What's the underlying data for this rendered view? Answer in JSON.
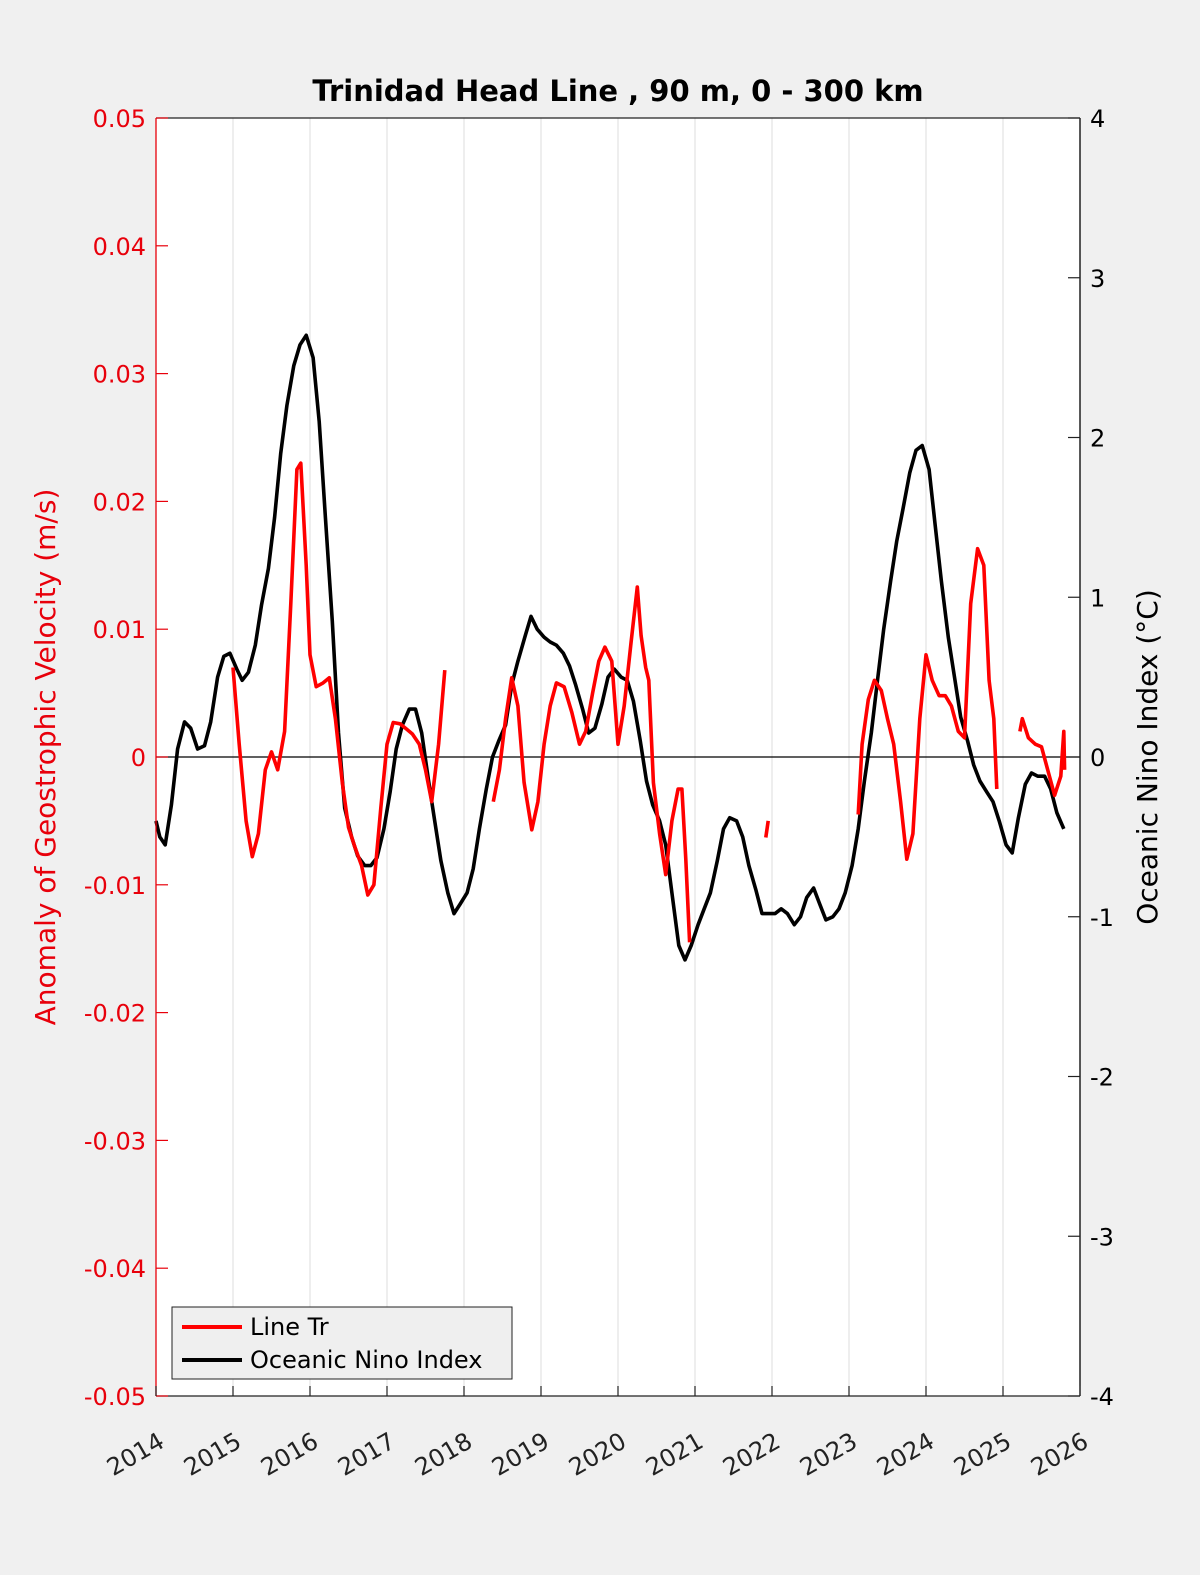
{
  "chart_data": {
    "type": "line",
    "title": "Trinidad Head Line , 90 m, 0 - 300 km",
    "xlabel": "",
    "ylabel": "Anomaly of Geostrophic Velocity (m/s)",
    "ylabel_right": "Oceanic Nino Index (°C)",
    "xlim": [
      2014,
      2026
    ],
    "ylim": [
      -0.05,
      0.05
    ],
    "ylim_right": [
      -4,
      4
    ],
    "x_ticks": [
      "2014",
      "2015",
      "2016",
      "2017",
      "2018",
      "2019",
      "2020",
      "2021",
      "2022",
      "2023",
      "2024",
      "2025",
      "2026"
    ],
    "y_ticks_left": [
      "0.05",
      "0.04",
      "0.03",
      "0.02",
      "0.01",
      "0",
      "-0.01",
      "-0.02",
      "-0.03",
      "-0.04",
      "-0.05"
    ],
    "y_ticks_right": [
      "4",
      "3",
      "2",
      "1",
      "0",
      "-1",
      "-2",
      "-3",
      "-4"
    ],
    "grid": "x",
    "legend_position": "bottom-left",
    "colors": {
      "line_tr": "#ff0000",
      "oni": "#000000",
      "left_axis": "#e8000b"
    },
    "series": [
      {
        "name": "Line Tr",
        "axis": "left",
        "segments": [
          [
            [
              2015.0,
              0.007
            ],
            [
              2015.08,
              0.001
            ],
            [
              2015.17,
              -0.005
            ],
            [
              2015.25,
              -0.0078
            ],
            [
              2015.33,
              -0.006
            ],
            [
              2015.42,
              -0.001
            ],
            [
              2015.5,
              0.0004
            ],
            [
              2015.58,
              -0.001
            ],
            [
              2015.67,
              0.002
            ],
            [
              2015.75,
              0.012
            ],
            [
              2015.83,
              0.0225
            ],
            [
              2015.88,
              0.023
            ],
            [
              2015.95,
              0.015
            ],
            [
              2016.0,
              0.008
            ],
            [
              2016.08,
              0.0055
            ],
            [
              2016.17,
              0.0058
            ],
            [
              2016.25,
              0.0062
            ],
            [
              2016.33,
              0.003
            ],
            [
              2016.42,
              -0.002
            ],
            [
              2016.5,
              -0.0055
            ],
            [
              2016.58,
              -0.007
            ],
            [
              2016.67,
              -0.0085
            ],
            [
              2016.75,
              -0.0108
            ],
            [
              2016.83,
              -0.01
            ],
            [
              2016.92,
              -0.004
            ],
            [
              2017.0,
              0.001
            ],
            [
              2017.08,
              0.0027
            ],
            [
              2017.17,
              0.0026
            ],
            [
              2017.25,
              0.0022
            ],
            [
              2017.33,
              0.0018
            ],
            [
              2017.42,
              0.001
            ],
            [
              2017.5,
              -0.001
            ],
            [
              2017.58,
              -0.0035
            ],
            [
              2017.67,
              0.001
            ],
            [
              2017.75,
              0.0068
            ]
          ],
          [
            [
              2018.38,
              -0.0035
            ],
            [
              2018.46,
              -0.001
            ],
            [
              2018.54,
              0.003
            ],
            [
              2018.62,
              0.0062
            ],
            [
              2018.7,
              0.004
            ],
            [
              2018.78,
              -0.002
            ],
            [
              2018.88,
              -0.0057
            ],
            [
              2018.96,
              -0.0035
            ],
            [
              2019.04,
              0.001
            ],
            [
              2019.12,
              0.004
            ],
            [
              2019.2,
              0.0058
            ],
            [
              2019.3,
              0.0055
            ],
            [
              2019.4,
              0.0035
            ],
            [
              2019.5,
              0.001
            ],
            [
              2019.58,
              0.002
            ],
            [
              2019.67,
              0.005
            ],
            [
              2019.75,
              0.0075
            ],
            [
              2019.83,
              0.0086
            ],
            [
              2019.92,
              0.0075
            ],
            [
              2020.0,
              0.001
            ],
            [
              2020.08,
              0.004
            ],
            [
              2020.17,
              0.009
            ],
            [
              2020.25,
              0.0133
            ],
            [
              2020.3,
              0.0095
            ],
            [
              2020.36,
              0.007
            ],
            [
              2020.4,
              0.006
            ],
            [
              2020.46,
              -0.002
            ],
            [
              2020.54,
              -0.006
            ],
            [
              2020.62,
              -0.0092
            ],
            [
              2020.7,
              -0.005
            ],
            [
              2020.78,
              -0.0025
            ],
            [
              2020.83,
              -0.0025
            ],
            [
              2020.88,
              -0.008
            ],
            [
              2020.93,
              -0.0145
            ]
          ],
          [
            [
              2021.92,
              -0.0063
            ],
            [
              2021.95,
              -0.005
            ]
          ],
          [
            [
              2023.12,
              -0.0045
            ],
            [
              2023.17,
              0.001
            ],
            [
              2023.25,
              0.0045
            ],
            [
              2023.33,
              0.006
            ],
            [
              2023.42,
              0.0052
            ],
            [
              2023.5,
              0.003
            ],
            [
              2023.58,
              0.001
            ],
            [
              2023.67,
              -0.0035
            ],
            [
              2023.75,
              -0.008
            ],
            [
              2023.83,
              -0.006
            ],
            [
              2023.92,
              0.003
            ],
            [
              2024.0,
              0.008
            ],
            [
              2024.08,
              0.006
            ],
            [
              2024.17,
              0.0048
            ],
            [
              2024.25,
              0.0048
            ],
            [
              2024.33,
              0.004
            ],
            [
              2024.42,
              0.002
            ],
            [
              2024.5,
              0.0015
            ],
            [
              2024.58,
              0.012
            ],
            [
              2024.67,
              0.0163
            ],
            [
              2024.75,
              0.015
            ],
            [
              2024.82,
              0.006
            ],
            [
              2024.88,
              0.003
            ],
            [
              2024.92,
              -0.0025
            ]
          ],
          [
            [
              2025.22,
              0.002
            ],
            [
              2025.25,
              0.003
            ],
            [
              2025.33,
              0.0015
            ],
            [
              2025.42,
              0.001
            ],
            [
              2025.5,
              0.0008
            ],
            [
              2025.58,
              -0.001
            ],
            [
              2025.67,
              -0.003
            ],
            [
              2025.75,
              -0.0015
            ],
            [
              2025.79,
              0.002
            ],
            [
              2025.8,
              -0.001
            ]
          ]
        ]
      },
      {
        "name": "Oceanic Nino Index",
        "axis": "right",
        "segments": [
          [
            [
              2014.0,
              -0.4
            ],
            [
              2014.05,
              -0.5
            ],
            [
              2014.12,
              -0.55
            ],
            [
              2014.2,
              -0.3
            ],
            [
              2014.28,
              0.05
            ],
            [
              2014.37,
              0.22
            ],
            [
              2014.45,
              0.18
            ],
            [
              2014.54,
              0.05
            ],
            [
              2014.63,
              0.07
            ],
            [
              2014.71,
              0.22
            ],
            [
              2014.8,
              0.5
            ],
            [
              2014.88,
              0.63
            ],
            [
              2014.96,
              0.65
            ],
            [
              2015.05,
              0.55
            ],
            [
              2015.12,
              0.48
            ],
            [
              2015.2,
              0.53
            ],
            [
              2015.29,
              0.7
            ],
            [
              2015.37,
              0.95
            ],
            [
              2015.46,
              1.18
            ],
            [
              2015.54,
              1.5
            ],
            [
              2015.62,
              1.9
            ],
            [
              2015.7,
              2.2
            ],
            [
              2015.79,
              2.45
            ],
            [
              2015.87,
              2.58
            ],
            [
              2015.95,
              2.64
            ],
            [
              2016.04,
              2.5
            ],
            [
              2016.12,
              2.1
            ],
            [
              2016.2,
              1.5
            ],
            [
              2016.29,
              0.85
            ],
            [
              2016.37,
              0.15
            ],
            [
              2016.45,
              -0.32
            ],
            [
              2016.54,
              -0.5
            ],
            [
              2016.62,
              -0.62
            ],
            [
              2016.71,
              -0.68
            ],
            [
              2016.79,
              -0.68
            ],
            [
              2016.87,
              -0.63
            ],
            [
              2016.96,
              -0.45
            ],
            [
              2017.04,
              -0.22
            ],
            [
              2017.12,
              0.05
            ],
            [
              2017.2,
              0.2
            ],
            [
              2017.29,
              0.3
            ],
            [
              2017.37,
              0.3
            ],
            [
              2017.45,
              0.15
            ],
            [
              2017.54,
              -0.15
            ],
            [
              2017.62,
              -0.4
            ],
            [
              2017.7,
              -0.65
            ],
            [
              2017.79,
              -0.85
            ],
            [
              2017.87,
              -0.98
            ],
            [
              2017.95,
              -0.92
            ],
            [
              2018.04,
              -0.85
            ],
            [
              2018.12,
              -0.7
            ],
            [
              2018.2,
              -0.45
            ],
            [
              2018.29,
              -0.2
            ],
            [
              2018.37,
              0.0
            ],
            [
              2018.45,
              0.1
            ],
            [
              2018.54,
              0.2
            ],
            [
              2018.62,
              0.45
            ],
            [
              2018.7,
              0.6
            ],
            [
              2018.79,
              0.75
            ],
            [
              2018.87,
              0.88
            ],
            [
              2018.95,
              0.8
            ],
            [
              2019.04,
              0.75
            ],
            [
              2019.12,
              0.72
            ],
            [
              2019.2,
              0.7
            ],
            [
              2019.29,
              0.65
            ],
            [
              2019.37,
              0.57
            ],
            [
              2019.45,
              0.45
            ],
            [
              2019.54,
              0.3
            ],
            [
              2019.62,
              0.15
            ],
            [
              2019.7,
              0.18
            ],
            [
              2019.79,
              0.33
            ],
            [
              2019.87,
              0.5
            ],
            [
              2019.95,
              0.55
            ],
            [
              2020.04,
              0.5
            ],
            [
              2020.12,
              0.48
            ],
            [
              2020.2,
              0.35
            ],
            [
              2020.29,
              0.1
            ],
            [
              2020.37,
              -0.15
            ],
            [
              2020.45,
              -0.3
            ],
            [
              2020.54,
              -0.4
            ],
            [
              2020.62,
              -0.55
            ],
            [
              2020.7,
              -0.85
            ],
            [
              2020.79,
              -1.18
            ],
            [
              2020.87,
              -1.27
            ],
            [
              2020.95,
              -1.18
            ],
            [
              2021.04,
              -1.05
            ],
            [
              2021.12,
              -0.95
            ],
            [
              2021.2,
              -0.85
            ],
            [
              2021.29,
              -0.65
            ],
            [
              2021.37,
              -0.45
            ],
            [
              2021.45,
              -0.38
            ],
            [
              2021.54,
              -0.4
            ],
            [
              2021.62,
              -0.5
            ],
            [
              2021.7,
              -0.68
            ],
            [
              2021.79,
              -0.83
            ],
            [
              2021.87,
              -0.98
            ],
            [
              2021.95,
              -0.98
            ],
            [
              2022.04,
              -0.98
            ],
            [
              2022.12,
              -0.95
            ],
            [
              2022.2,
              -0.98
            ],
            [
              2022.29,
              -1.05
            ],
            [
              2022.37,
              -1.0
            ],
            [
              2022.45,
              -0.88
            ],
            [
              2022.54,
              -0.82
            ],
            [
              2022.62,
              -0.92
            ],
            [
              2022.7,
              -1.02
            ],
            [
              2022.79,
              -1.0
            ],
            [
              2022.87,
              -0.95
            ],
            [
              2022.95,
              -0.85
            ],
            [
              2023.04,
              -0.68
            ],
            [
              2023.12,
              -0.45
            ],
            [
              2023.2,
              -0.15
            ],
            [
              2023.29,
              0.15
            ],
            [
              2023.37,
              0.48
            ],
            [
              2023.45,
              0.8
            ],
            [
              2023.54,
              1.1
            ],
            [
              2023.62,
              1.35
            ],
            [
              2023.7,
              1.55
            ],
            [
              2023.79,
              1.78
            ],
            [
              2023.87,
              1.92
            ],
            [
              2023.95,
              1.95
            ],
            [
              2024.04,
              1.8
            ],
            [
              2024.12,
              1.45
            ],
            [
              2024.2,
              1.1
            ],
            [
              2024.29,
              0.75
            ],
            [
              2024.37,
              0.5
            ],
            [
              2024.45,
              0.25
            ],
            [
              2024.54,
              0.1
            ],
            [
              2024.62,
              -0.05
            ],
            [
              2024.7,
              -0.15
            ],
            [
              2024.79,
              -0.22
            ],
            [
              2024.87,
              -0.28
            ],
            [
              2024.95,
              -0.4
            ],
            [
              2025.04,
              -0.55
            ],
            [
              2025.12,
              -0.6
            ],
            [
              2025.2,
              -0.38
            ],
            [
              2025.29,
              -0.17
            ],
            [
              2025.37,
              -0.1
            ],
            [
              2025.45,
              -0.12
            ],
            [
              2025.54,
              -0.12
            ],
            [
              2025.62,
              -0.2
            ],
            [
              2025.7,
              -0.35
            ],
            [
              2025.79,
              -0.45
            ]
          ]
        ]
      }
    ]
  }
}
